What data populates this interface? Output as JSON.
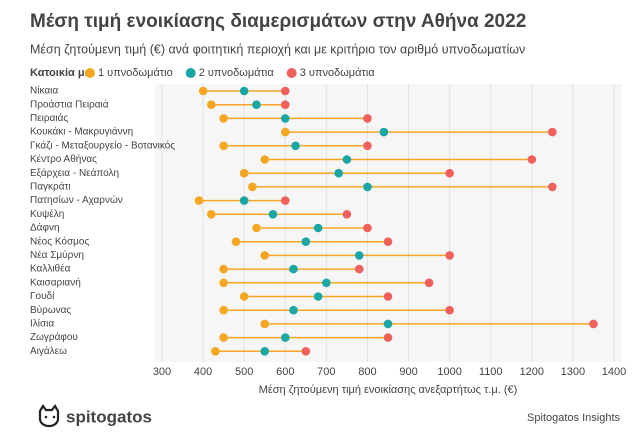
{
  "chart_data": {
    "type": "dumbbell",
    "title": "Μέση τιμή ενοικίασης διαμερισμάτων στην Αθήνα 2022",
    "subtitle": "Μέση ζητούμενη τιμή (€) ανά φοιτητική περιοχή και με κριτήριο τον αριθμό υπνοδωματίων",
    "legend_title": "Κατοικία με",
    "x_label": "Μέση ζητούμενη τιμή ενοικίασης ανεξαρτήτως τ.μ. (€)",
    "brand": "spitogatos",
    "source": "Spitogatos Insights",
    "categories": [
      "Νίκαια",
      "Προάστια Πειραιά",
      "Πειραιάς",
      "Κουκάκι - Μακρυγιάννη",
      "Γκάζι - Μεταξουργείο - Βοτανικός",
      "Κέντρο Αθήνας",
      "Εξάρχεια - Νεάπολη",
      "Παγκράτι",
      "Πατησίων - Αχαρνών",
      "Κυψέλη",
      "Δάφνη",
      "Νέος Κόσμος",
      "Νέα Σμύρνη",
      "Καλλιθέα",
      "Καισαριανή",
      "Γουδί",
      "Βύρωνας",
      "Ιλίσια",
      "Ζωγράφου",
      "Αιγάλεω"
    ],
    "series": [
      {
        "name": "1 υπνοδωμάτιο",
        "color": "#f5a623",
        "values": [
          400,
          420,
          450,
          600,
          450,
          550,
          500,
          520,
          390,
          420,
          530,
          480,
          550,
          450,
          450,
          500,
          450,
          550,
          450,
          430
        ]
      },
      {
        "name": "2 υπνοδωμάτια",
        "color": "#1ba6a6",
        "values": [
          500,
          530,
          600,
          840,
          625,
          750,
          730,
          800,
          500,
          570,
          680,
          650,
          780,
          620,
          700,
          680,
          620,
          850,
          600,
          550
        ]
      },
      {
        "name": "3 υπνοδωμάτια",
        "color": "#f0605d",
        "values": [
          600,
          600,
          800,
          1250,
          800,
          1200,
          1000,
          1250,
          600,
          750,
          800,
          850,
          1000,
          780,
          950,
          850,
          1000,
          1350,
          850,
          650
        ]
      }
    ],
    "xlim": [
      300,
      1400
    ],
    "xticks": [
      300,
      400,
      500,
      600,
      700,
      800,
      900,
      1000,
      1100,
      1200,
      1300,
      1400
    ],
    "grid": true
  }
}
